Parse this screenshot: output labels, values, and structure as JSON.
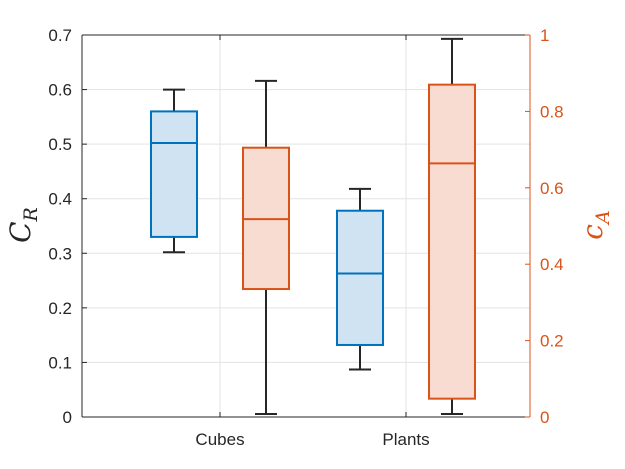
{
  "chart_data": {
    "type": "boxplot",
    "title": "",
    "categories": [
      "Cubes",
      "Plants"
    ],
    "left_axis": {
      "label": "C",
      "label_subscript": "R",
      "ylim": [
        0,
        0.7
      ],
      "ticks": [
        "0",
        "0.1",
        "0.2",
        "0.3",
        "0.4",
        "0.5",
        "0.6",
        "0.7"
      ],
      "color": "#262626"
    },
    "right_axis": {
      "label": "c",
      "label_subscript": "A",
      "ylim": [
        0,
        1
      ],
      "ticks": [
        "0",
        "0.2",
        "0.4",
        "0.6",
        "0.8",
        "1"
      ],
      "color": "#D95319"
    },
    "series": [
      {
        "name": "C_R",
        "axis": "left",
        "edge_color": "#0072BD",
        "fill_color": "#CFE3F2",
        "boxes": [
          {
            "category": "Cubes",
            "whisker_low": 0.302,
            "q1": 0.33,
            "median": 0.502,
            "q3": 0.56,
            "whisker_high": 0.6
          },
          {
            "category": "Plants",
            "whisker_low": 0.087,
            "q1": 0.132,
            "median": 0.263,
            "q3": 0.378,
            "whisker_high": 0.418
          }
        ]
      },
      {
        "name": "c_A",
        "axis": "right",
        "edge_color": "#D95319",
        "fill_color": "#F8DCD2",
        "boxes": [
          {
            "category": "Cubes",
            "whisker_low": 0.008,
            "q1": 0.335,
            "median": 0.518,
            "q3": 0.705,
            "whisker_high": 0.88
          },
          {
            "category": "Plants",
            "whisker_low": 0.008,
            "q1": 0.048,
            "median": 0.664,
            "q3": 0.87,
            "whisker_high": 0.99
          }
        ]
      }
    ],
    "grid": true,
    "whisker_color": "#262626"
  }
}
